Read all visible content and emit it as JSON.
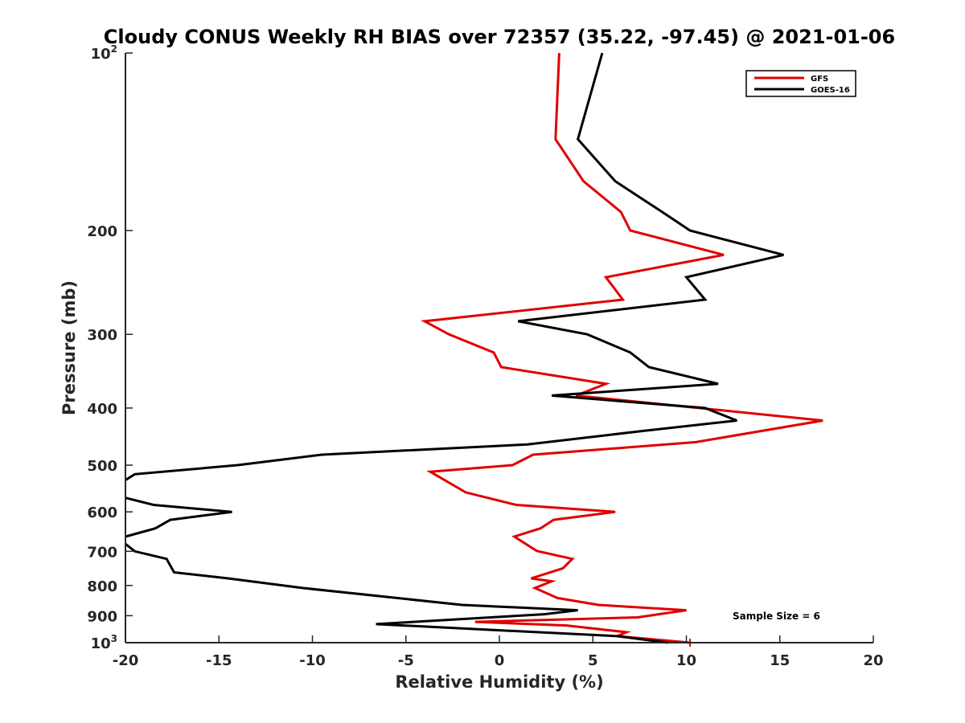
{
  "chart_data": {
    "type": "line",
    "title": "Cloudy CONUS Weekly RH BIAS over 72357 (35.22, -97.45) @ 2021-01-06",
    "xlabel": "Relative Humidity (%)",
    "ylabel": "Pressure (mb)",
    "xlim": [
      -20,
      20
    ],
    "ylim": [
      100,
      1000
    ],
    "y_scale": "log",
    "y_reversed": true,
    "grid": false,
    "legend_position": "top-right",
    "annotation": "Sample Size = 6",
    "x_ticks": [
      "-20",
      "-15",
      "-10",
      "-5",
      "0",
      "5",
      "10",
      "15",
      "20"
    ],
    "x_tick_values": [
      -20,
      -15,
      -10,
      -5,
      0,
      5,
      10,
      15,
      20
    ],
    "y_ticks": [
      {
        "value": 100,
        "base": "10",
        "exp": "2"
      },
      {
        "value": 200,
        "label": "200"
      },
      {
        "value": 300,
        "label": "300"
      },
      {
        "value": 400,
        "label": "400"
      },
      {
        "value": 500,
        "label": "500"
      },
      {
        "value": 600,
        "label": "600"
      },
      {
        "value": 700,
        "label": "700"
      },
      {
        "value": 800,
        "label": "800"
      },
      {
        "value": 900,
        "label": "900"
      },
      {
        "value": 1000,
        "base": "10",
        "exp": "3"
      }
    ],
    "series": [
      {
        "name": "GFS",
        "color": "#e00000",
        "points": [
          [
            3.2,
            100
          ],
          [
            3.0,
            140
          ],
          [
            4.5,
            165
          ],
          [
            6.5,
            186
          ],
          [
            7.0,
            200
          ],
          [
            12.0,
            220
          ],
          [
            5.7,
            240
          ],
          [
            6.6,
            262
          ],
          [
            -4.0,
            285
          ],
          [
            -2.7,
            300
          ],
          [
            -0.3,
            322
          ],
          [
            0.1,
            341
          ],
          [
            5.7,
            364
          ],
          [
            4.1,
            381
          ],
          [
            17.3,
            420
          ],
          [
            10.5,
            457
          ],
          [
            1.8,
            480
          ],
          [
            0.7,
            500
          ],
          [
            -3.7,
            513
          ],
          [
            -1.8,
            556
          ],
          [
            0.9,
            584
          ],
          [
            6.2,
            600
          ],
          [
            2.9,
            619
          ],
          [
            2.2,
            640
          ],
          [
            0.8,
            661
          ],
          [
            2.0,
            699
          ],
          [
            3.9,
            721
          ],
          [
            3.4,
            748
          ],
          [
            1.7,
            778
          ],
          [
            2.8,
            787
          ],
          [
            1.9,
            808
          ],
          [
            3.1,
            840
          ],
          [
            5.3,
            863
          ],
          [
            10.0,
            881
          ],
          [
            7.4,
            906
          ],
          [
            -1.3,
            922
          ],
          [
            3.6,
            935
          ],
          [
            6.8,
            960
          ],
          [
            6.3,
            975
          ],
          [
            10.2,
            1000
          ]
        ]
      },
      {
        "name": "GOES-16",
        "color": "#000000",
        "points": [
          [
            5.5,
            100
          ],
          [
            4.2,
            140
          ],
          [
            6.2,
            165
          ],
          [
            8.7,
            186
          ],
          [
            10.2,
            200
          ],
          [
            15.2,
            220
          ],
          [
            10.0,
            240
          ],
          [
            11.0,
            262
          ],
          [
            1.0,
            285
          ],
          [
            4.7,
            300
          ],
          [
            7.0,
            322
          ],
          [
            8.0,
            341
          ],
          [
            11.7,
            364
          ],
          [
            2.8,
            381
          ],
          [
            11.0,
            400
          ],
          [
            12.7,
            420
          ],
          [
            7.8,
            437
          ],
          [
            1.5,
            461
          ],
          [
            -9.5,
            480
          ],
          [
            -14.0,
            500
          ],
          [
            -19.5,
            518
          ],
          [
            -20.0,
            530
          ]
        ],
        "points_b": [
          [
            -20.0,
            568
          ],
          [
            -18.5,
            584
          ],
          [
            -14.3,
            600
          ],
          [
            -17.6,
            619
          ],
          [
            -18.4,
            640
          ],
          [
            -20.0,
            661
          ]
        ],
        "points_c": [
          [
            -20.0,
            680
          ],
          [
            -19.5,
            700
          ],
          [
            -17.8,
            721
          ],
          [
            -17.4,
            760
          ],
          [
            -14.5,
            778
          ],
          [
            -10.5,
            808
          ],
          [
            -2.0,
            863
          ],
          [
            4.2,
            881
          ],
          [
            2.4,
            895
          ],
          [
            -6.6,
            930
          ],
          [
            6.3,
            975
          ],
          [
            9.0,
            1000
          ]
        ]
      }
    ]
  }
}
